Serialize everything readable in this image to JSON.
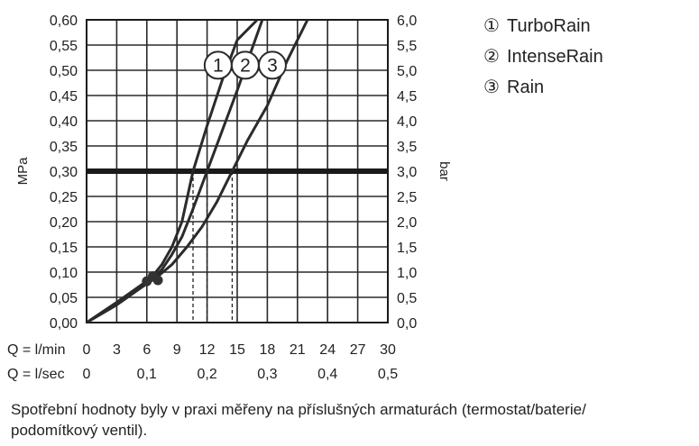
{
  "legend": [
    {
      "marker": "①",
      "label": "TurboRain"
    },
    {
      "marker": "②",
      "label": "IntenseRain"
    },
    {
      "marker": "③",
      "label": "Rain"
    }
  ],
  "caption_line1": "Spotřební hodnoty byly v praxi měřeny na příslušných armaturách (termostat/baterie/",
  "caption_line2": "podomítkový ventil).",
  "chart_data": {
    "type": "line",
    "y_left_label": "MPa",
    "y_right_label": "bar",
    "x_label_primary": "Q = l/min",
    "x_label_secondary": "Q = l/sec",
    "xlim": [
      0,
      30
    ],
    "ylim": [
      0,
      0.6
    ],
    "x_ticks": [
      "0",
      "3",
      "6",
      "9",
      "12",
      "15",
      "18",
      "21",
      "24",
      "27",
      "30"
    ],
    "x_ticks_secondary": [
      {
        "x": 0,
        "label": "0"
      },
      {
        "x": 6,
        "label": "0,1"
      },
      {
        "x": 12,
        "label": "0,2"
      },
      {
        "x": 18,
        "label": "0,3"
      },
      {
        "x": 24,
        "label": "0,4"
      },
      {
        "x": 30,
        "label": "0,5"
      }
    ],
    "y_ticks_left": [
      "0,00",
      "0,05",
      "0,10",
      "0,15",
      "0,20",
      "0,25",
      "0,30",
      "0,35",
      "0,40",
      "0,45",
      "0,50",
      "0,55",
      "0,60"
    ],
    "y_ticks_right": [
      "0,0",
      "0,5",
      "1,0",
      "1,5",
      "2,0",
      "2,5",
      "3,0",
      "3,5",
      "4,0",
      "4,5",
      "5,0",
      "5,5",
      "6,0"
    ],
    "grid": true,
    "reference_line": {
      "y": 0.3
    },
    "series": [
      {
        "name": "1",
        "x": [
          0,
          3,
          5.5,
          6.5,
          7.5,
          8.5,
          9.5,
          10.6,
          12,
          13.5,
          15,
          17
        ],
        "y": [
          0,
          0.04,
          0.075,
          0.09,
          0.115,
          0.15,
          0.2,
          0.3,
          0.39,
          0.48,
          0.56,
          0.6
        ]
      },
      {
        "name": "2",
        "x": [
          0,
          3,
          5.5,
          6.5,
          7.5,
          8.5,
          9.5,
          10.5,
          12,
          13.5,
          15,
          17.5
        ],
        "y": [
          0,
          0.04,
          0.075,
          0.085,
          0.105,
          0.135,
          0.17,
          0.22,
          0.3,
          0.38,
          0.46,
          0.6
        ]
      },
      {
        "name": "3",
        "x": [
          0,
          3,
          5.5,
          7,
          8.5,
          10,
          11.5,
          13,
          14.5,
          16,
          18,
          20,
          22
        ],
        "y": [
          0,
          0.035,
          0.07,
          0.09,
          0.115,
          0.15,
          0.19,
          0.24,
          0.3,
          0.36,
          0.43,
          0.52,
          0.6
        ]
      }
    ],
    "operating_points": [
      {
        "x": 10.6,
        "y": 0.3
      },
      {
        "x": 12,
        "y": 0.3
      },
      {
        "x": 14.5,
        "y": 0.3
      }
    ],
    "minimum_points": [
      {
        "x": 6.0,
        "y": 0.082
      },
      {
        "x": 6.6,
        "y": 0.092
      },
      {
        "x": 7.1,
        "y": 0.084
      }
    ],
    "curve_labels": [
      {
        "series": "1",
        "text": "1",
        "x": 13.1,
        "y": 0.51
      },
      {
        "series": "2",
        "text": "2",
        "x": 15.8,
        "y": 0.51
      },
      {
        "series": "3",
        "text": "3",
        "x": 18.5,
        "y": 0.51
      }
    ]
  }
}
